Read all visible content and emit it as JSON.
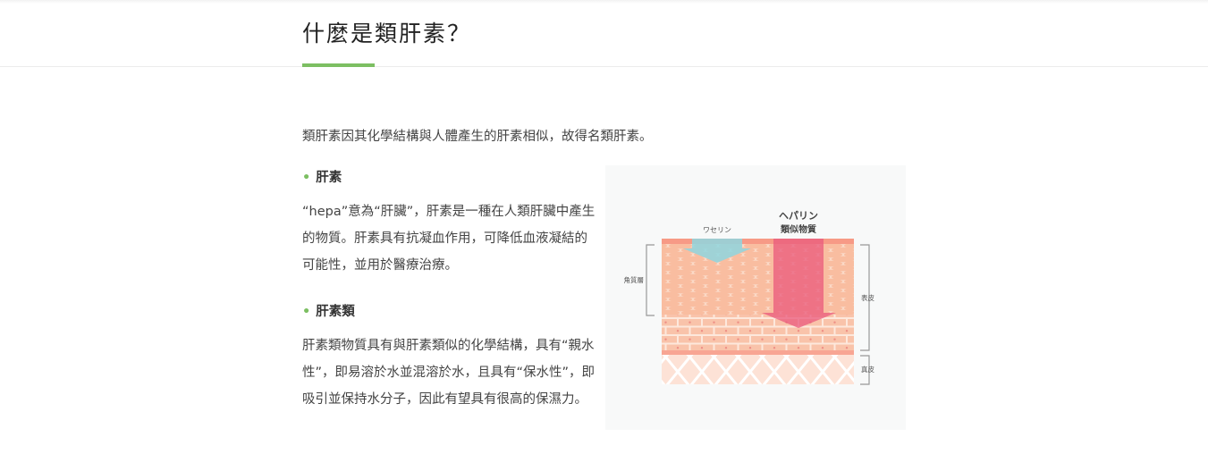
{
  "section": {
    "title": "什麼是類肝素？",
    "intro": "類肝素因其化學結構與人體產生的肝素相似，故得名類肝素。"
  },
  "items": [
    {
      "heading": "肝素",
      "text": "“hepa”意為“肝臟”，肝素是一種在人類肝臟中產生的物質。肝素具有抗凝血作用，可降低血液凝結的可能性，並用於醫療治療。"
    },
    {
      "heading": "肝素類",
      "text": "肝素類物質具有與肝素類似的化學結構，具有“親水性”，即易溶於水並混溶於水，且具有“保水性”，即吸引並保持水分子，因此有望具有很高的保濕力。"
    }
  ],
  "figure": {
    "vaseline_label": "ワセリン",
    "heparin_label_1": "ヘパリン",
    "heparin_label_2": "類似物質",
    "stratum_corneum_label": "角質層",
    "epidermis_label": "表皮",
    "dermis_label": "真皮",
    "colors": {
      "accent": "#7cbf62",
      "skin": "#fbd3bd",
      "cells": "#f9b99c",
      "vaseline": "#8fd6df",
      "heparin": "#ea5a7c"
    }
  }
}
